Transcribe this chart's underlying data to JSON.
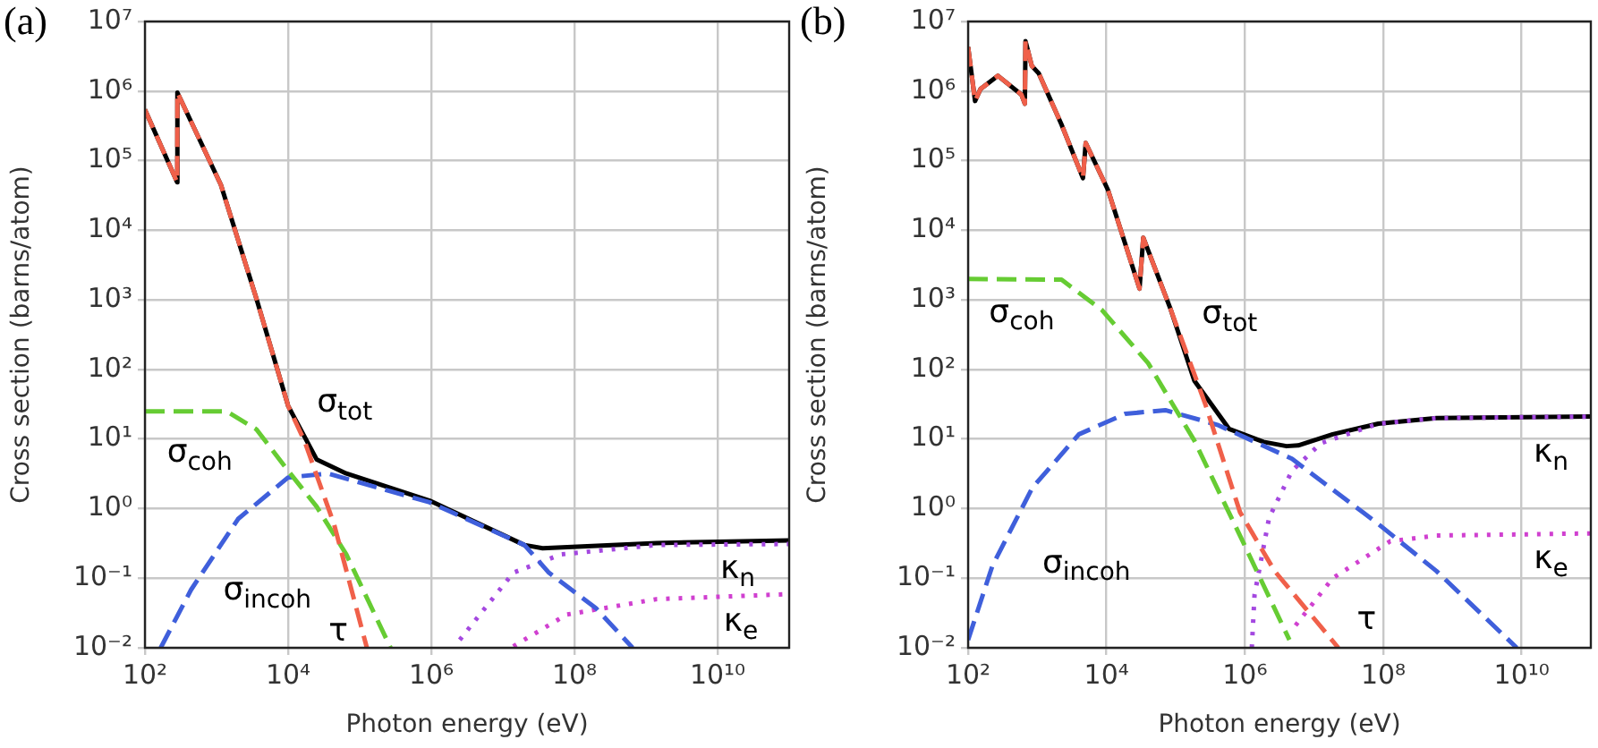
{
  "chart_data": [
    {
      "type": "line",
      "title": "(a)",
      "xlabel": "Photon energy (eV)",
      "ylabel": "Cross section (barns/atom)",
      "log": "xy",
      "grid": true,
      "xlim": [
        100.0,
        100000000000.0
      ],
      "xticks": [
        {
          "value": 100.0,
          "label": "10²"
        },
        {
          "value": 10000.0,
          "label": "10⁴"
        },
        {
          "value": 1000000.0,
          "label": "10⁶"
        },
        {
          "value": 100000000.0,
          "label": "10⁸"
        },
        {
          "value": 10000000000.0,
          "label": "10¹⁰"
        }
      ],
      "ylim": [
        0.01,
        10000000.0
      ],
      "yticks": [
        {
          "value": 0.01,
          "label": "10⁻²"
        },
        {
          "value": 0.1,
          "label": "10⁻¹"
        },
        {
          "value": 1,
          "label": "10⁰"
        },
        {
          "value": 10,
          "label": "10¹"
        },
        {
          "value": 100,
          "label": "10²"
        },
        {
          "value": 1000.0,
          "label": "10³"
        },
        {
          "value": 10000.0,
          "label": "10⁴"
        },
        {
          "value": 100000.0,
          "label": "10⁵"
        },
        {
          "value": 1000000.0,
          "label": "10⁶"
        },
        {
          "value": 10000000.0,
          "label": "10⁷"
        }
      ],
      "series": [
        {
          "name": "τ",
          "color": "#f0604a",
          "line_style": "dashed",
          "x": [
            100,
            282,
            284,
            1150,
            3600,
            10000.0,
            17000.0,
            44000.0,
            126000.0
          ],
          "values": [
            540000.0,
            49000.0,
            950000.0,
            45000.0,
            1050,
            30,
            9.3,
            0.59,
            0.01
          ]
        },
        {
          "name": "σ$_{coh}$",
          "color": "#66cc33",
          "line_style": "dashed",
          "x": [
            100,
            1380,
            3600,
            10000.0,
            25000.0,
            65000.0,
            270000.0
          ],
          "values": [
            25,
            25,
            13.8,
            3.5,
            1.07,
            0.22,
            0.01
          ]
        },
        {
          "name": "σ$_{incoh}$",
          "color": "#3f5fdb",
          "line_style": "dashed",
          "x": [
            166,
            440,
            2000,
            10000.0,
            36000.0,
            950000.0,
            20000000.0,
            44000000.0,
            200000000.0,
            650000000.0
          ],
          "values": [
            0.01,
            0.068,
            0.71,
            2.8,
            3.2,
            1.23,
            0.3,
            0.12,
            0.037,
            0.01
          ]
        },
        {
          "name": "κ$_{n}$",
          "color": "#a448e0",
          "line_style": "dotted",
          "x": [
            2500000.0,
            14000000.0,
            65000000.0,
            1400000000.0,
            100000000000.0
          ],
          "values": [
            0.013,
            0.12,
            0.22,
            0.3,
            0.31
          ]
        },
        {
          "name": "κ$_{e}$",
          "color": "#d040d0",
          "line_style": "dotted",
          "x": [
            14000000.0,
            78000000.0,
            1400000000.0,
            100000000000.0
          ],
          "values": [
            0.0105,
            0.03,
            0.05,
            0.059
          ]
        },
        {
          "name": "σ$_{tot}$",
          "color": "#000000",
          "line_style": "solid",
          "x": [
            100,
            282,
            284,
            1150,
            3600,
            10000.0,
            25000.0,
            65000.0,
            950000.0,
            20000000.0,
            36000000.0,
            1400000000.0,
            100000000000.0
          ],
          "values": [
            540000.0,
            49000.0,
            950000.0,
            45000.0,
            1050,
            30,
            5.1,
            3.2,
            1.3,
            0.3,
            0.27,
            0.32,
            0.35
          ]
        }
      ],
      "marker": "none"
    },
    {
      "type": "line",
      "title": "(b)",
      "xlabel": "Photon energy (eV)",
      "ylabel": "Cross section (barns/atom)",
      "log": "xy",
      "grid": true,
      "xlim": [
        100.0,
        100000000000.0
      ],
      "xticks": [
        {
          "value": 100.0,
          "label": "10²"
        },
        {
          "value": 10000.0,
          "label": "10⁴"
        },
        {
          "value": 1000000.0,
          "label": "10⁶"
        },
        {
          "value": 100000000.0,
          "label": "10⁸"
        },
        {
          "value": 10000000000.0,
          "label": "10¹⁰"
        }
      ],
      "ylim": [
        0.01,
        10000000.0
      ],
      "yticks": [
        {
          "value": 0.01,
          "label": "10⁻²"
        },
        {
          "value": 0.1,
          "label": "10⁻¹"
        },
        {
          "value": 1,
          "label": "10⁰"
        },
        {
          "value": 10,
          "label": "10¹"
        },
        {
          "value": 100,
          "label": "10²"
        },
        {
          "value": 1000.0,
          "label": "10³"
        },
        {
          "value": 10000.0,
          "label": "10⁴"
        },
        {
          "value": 100000.0,
          "label": "10⁵"
        },
        {
          "value": 1000000.0,
          "label": "10⁶"
        },
        {
          "value": 10000000.0,
          "label": "10⁷"
        }
      ],
      "series": [
        {
          "name": "τ",
          "color": "#f0604a",
          "line_style": "dashed",
          "x": [
            100,
            126,
            151,
            269,
            589,
            661,
            676,
            832,
            1050,
            2240,
            4570,
            5010,
            10500.0,
            30000.0,
            34000.0,
            85000.0,
            270000.0,
            850000.0,
            2700000.0,
            8500000.0,
            22400000.0
          ],
          "values": [
            4300000.0,
            720000.0,
            1070000.0,
            1660000.0,
            890000.0,
            660000.0,
            5200000.0,
            2300000.0,
            1800000.0,
            330000.0,
            56000.0,
            180000.0,
            38000.0,
            1450,
            7800,
            720,
            31,
            0.89,
            0.126,
            0.032,
            0.01
          ]
        },
        {
          "name": "σ$_{coh}$",
          "color": "#66cc33",
          "line_style": "dashed",
          "x": [
            100,
            2240,
            8500,
            40000.0,
            186000.0,
            850000.0,
            4400000.0
          ],
          "values": [
            2000,
            1950,
            720,
            123,
            9.5,
            0.41,
            0.013
          ]
        },
        {
          "name": "σ$_{incoh}$",
          "color": "#3f5fdb",
          "line_style": "dashed",
          "x": [
            100,
            224,
            850,
            4000,
            18600.0,
            71000.0,
            400000.0,
            4800000.0,
            85000000.0,
            590000000.0,
            8500000000.0
          ],
          "values": [
            0.013,
            0.15,
            2,
            11.7,
            23,
            26,
            16,
            5.2,
            0.6,
            0.126,
            0.01
          ]
        },
        {
          "name": "κ$_{n}$",
          "color": "#a448e0",
          "line_style": "dotted",
          "x": [
            1260000.0,
            1380000.0,
            2240000.0,
            4800000.0,
            12600000.0,
            85000000.0,
            590000000.0,
            100000000000.0
          ],
          "values": [
            0.01,
            0.058,
            0.74,
            3.5,
            8.7,
            16.6,
            20,
            21
          ]
        },
        {
          "name": "κ$_{e}$",
          "color": "#d040d0",
          "line_style": "dotted",
          "x": [
            5400000.0,
            18600000.0,
            126000000.0,
            590000000.0,
            100000000000.0
          ],
          "values": [
            0.021,
            0.1,
            0.34,
            0.41,
            0.44
          ]
        },
        {
          "name": "σ$_{tot}$",
          "color": "#000000",
          "line_style": "solid",
          "x": [
            100,
            126,
            151,
            269,
            589,
            661,
            676,
            832,
            1050,
            2240,
            4570,
            5010,
            10500.0,
            30000.0,
            34000.0,
            85000.0,
            186000.0,
            590000.0,
            1860000.0,
            4000000.0,
            5900000.0,
            18600000.0,
            85000000.0,
            590000000.0,
            100000000000.0
          ],
          "values": [
            4300000.0,
            720000.0,
            1070000.0,
            1660000.0,
            890000.0,
            660000.0,
            5200000.0,
            2300000.0,
            1800000.0,
            330000.0,
            56000.0,
            180000.0,
            38000.0,
            1450,
            7800,
            720,
            69,
            14,
            9.1,
            7.9,
            8.1,
            11.7,
            16.6,
            20,
            21
          ]
        }
      ],
      "marker": "none"
    }
  ]
}
